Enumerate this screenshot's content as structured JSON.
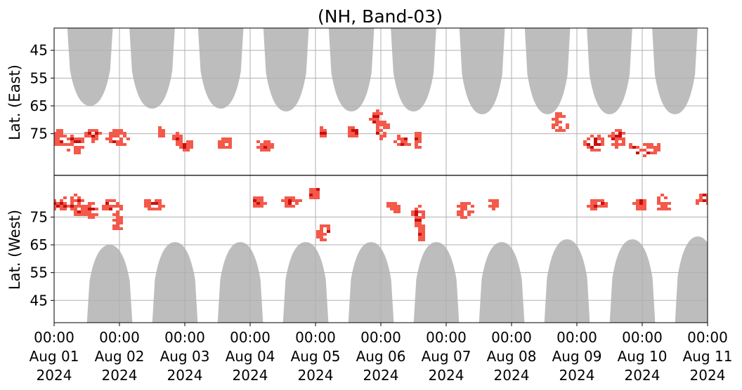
{
  "chart_data": {
    "type": "heatmap",
    "title": "(NH, Band-03)",
    "panels": [
      {
        "ylabel": "Lat. (East)",
        "yticks": [
          "45",
          "55",
          "65",
          "75"
        ],
        "ylim": [
          90,
          37
        ]
      },
      {
        "ylabel": "Lat. (West)",
        "yticks": [
          "75",
          "65",
          "55",
          "45"
        ],
        "ylim": [
          90,
          37
        ]
      }
    ],
    "x_ticks": [
      {
        "time": "00:00",
        "date": "Aug 01",
        "year": "2024"
      },
      {
        "time": "00:00",
        "date": "Aug 02",
        "year": "2024"
      },
      {
        "time": "00:00",
        "date": "Aug 03",
        "year": "2024"
      },
      {
        "time": "00:00",
        "date": "Aug 04",
        "year": "2024"
      },
      {
        "time": "00:00",
        "date": "Aug 05",
        "year": "2024"
      },
      {
        "time": "00:00",
        "date": "Aug 06",
        "year": "2024"
      },
      {
        "time": "00:00",
        "date": "Aug 07",
        "year": "2024"
      },
      {
        "time": "00:00",
        "date": "Aug 08",
        "year": "2024"
      },
      {
        "time": "00:00",
        "date": "Aug 09",
        "year": "2024"
      },
      {
        "time": "00:00",
        "date": "Aug 10",
        "year": "2024"
      },
      {
        "time": "00:00",
        "date": "Aug 11",
        "year": "2024"
      }
    ],
    "x_range": [
      "2024-08-01 00:00",
      "2024-08-11 00:00"
    ],
    "grid": true,
    "colors": {
      "no_data": "#bdbdbd",
      "low": "#f4594a",
      "high": "#c80f10"
    },
    "no_data_regions": [
      {
        "panel": "east",
        "center_day": 0.55,
        "edge_lat": 65,
        "half_width_days": 0.35
      },
      {
        "panel": "east",
        "center_day": 1.5,
        "edge_lat": 66,
        "half_width_days": 0.35
      },
      {
        "panel": "east",
        "center_day": 2.55,
        "edge_lat": 66,
        "half_width_days": 0.35
      },
      {
        "panel": "east",
        "center_day": 3.55,
        "edge_lat": 67,
        "half_width_days": 0.35
      },
      {
        "panel": "east",
        "center_day": 4.55,
        "edge_lat": 67,
        "half_width_days": 0.35
      },
      {
        "panel": "east",
        "center_day": 5.5,
        "edge_lat": 67,
        "half_width_days": 0.35
      },
      {
        "panel": "east",
        "center_day": 6.55,
        "edge_lat": 68,
        "half_width_days": 0.35
      },
      {
        "panel": "east",
        "center_day": 7.55,
        "edge_lat": 68,
        "half_width_days": 0.35
      },
      {
        "panel": "east",
        "center_day": 8.5,
        "edge_lat": 68,
        "half_width_days": 0.35
      },
      {
        "panel": "east",
        "center_day": 9.5,
        "edge_lat": 68,
        "half_width_days": 0.35
      },
      {
        "panel": "west",
        "center_day": 0.85,
        "edge_lat": 65,
        "half_width_days": 0.35
      },
      {
        "panel": "west",
        "center_day": 1.85,
        "edge_lat": 66,
        "half_width_days": 0.35
      },
      {
        "panel": "west",
        "center_day": 2.85,
        "edge_lat": 66,
        "half_width_days": 0.35
      },
      {
        "panel": "west",
        "center_day": 3.85,
        "edge_lat": 66,
        "half_width_days": 0.35
      },
      {
        "panel": "west",
        "center_day": 4.85,
        "edge_lat": 66,
        "half_width_days": 0.35
      },
      {
        "panel": "west",
        "center_day": 5.85,
        "edge_lat": 66,
        "half_width_days": 0.35
      },
      {
        "panel": "west",
        "center_day": 6.85,
        "edge_lat": 66,
        "half_width_days": 0.35
      },
      {
        "panel": "west",
        "center_day": 7.85,
        "edge_lat": 67,
        "half_width_days": 0.35
      },
      {
        "panel": "west",
        "center_day": 8.85,
        "edge_lat": 67,
        "half_width_days": 0.35
      },
      {
        "panel": "west",
        "center_day": 9.85,
        "edge_lat": 68,
        "half_width_days": 0.35
      }
    ],
    "activity_clusters": [
      {
        "day": 0.05,
        "lat": 76,
        "panel": "east",
        "spread_days": 0.12,
        "spread_lat": 3,
        "intensity": 0.5
      },
      {
        "day": 0.3,
        "lat": 78,
        "panel": "east",
        "spread_days": 0.15,
        "spread_lat": 4,
        "intensity": 0.8
      },
      {
        "day": 0.55,
        "lat": 75,
        "panel": "east",
        "spread_days": 0.12,
        "spread_lat": 2,
        "intensity": 0.5
      },
      {
        "day": 0.95,
        "lat": 76,
        "panel": "east",
        "spread_days": 0.15,
        "spread_lat": 3,
        "intensity": 0.5
      },
      {
        "day": 1.6,
        "lat": 74,
        "panel": "east",
        "spread_days": 0.05,
        "spread_lat": 2,
        "intensity": 0.6
      },
      {
        "day": 1.85,
        "lat": 76,
        "panel": "east",
        "spread_days": 0.08,
        "spread_lat": 2,
        "intensity": 0.4
      },
      {
        "day": 2.0,
        "lat": 79,
        "panel": "east",
        "spread_days": 0.12,
        "spread_lat": 2,
        "intensity": 0.5
      },
      {
        "day": 2.6,
        "lat": 78,
        "panel": "east",
        "spread_days": 0.1,
        "spread_lat": 2,
        "intensity": 0.6
      },
      {
        "day": 3.2,
        "lat": 79,
        "panel": "east",
        "spread_days": 0.12,
        "spread_lat": 2,
        "intensity": 0.7
      },
      {
        "day": 4.1,
        "lat": 74,
        "panel": "east",
        "spread_days": 0.05,
        "spread_lat": 2,
        "intensity": 0.4
      },
      {
        "day": 4.55,
        "lat": 74,
        "panel": "east",
        "spread_days": 0.08,
        "spread_lat": 2,
        "intensity": 0.4
      },
      {
        "day": 4.9,
        "lat": 69,
        "panel": "east",
        "spread_days": 0.08,
        "spread_lat": 3,
        "intensity": 0.5
      },
      {
        "day": 5.0,
        "lat": 73,
        "panel": "east",
        "spread_days": 0.1,
        "spread_lat": 3,
        "intensity": 0.6
      },
      {
        "day": 5.3,
        "lat": 77,
        "panel": "east",
        "spread_days": 0.12,
        "spread_lat": 2,
        "intensity": 0.5
      },
      {
        "day": 5.55,
        "lat": 77,
        "panel": "east",
        "spread_days": 0.05,
        "spread_lat": 3,
        "intensity": 0.6
      },
      {
        "day": 7.7,
        "lat": 71,
        "panel": "east",
        "spread_days": 0.12,
        "spread_lat": 4,
        "intensity": 0.5
      },
      {
        "day": 8.25,
        "lat": 78,
        "panel": "east",
        "spread_days": 0.15,
        "spread_lat": 3,
        "intensity": 0.8
      },
      {
        "day": 8.6,
        "lat": 76,
        "panel": "east",
        "spread_days": 0.15,
        "spread_lat": 3,
        "intensity": 0.7
      },
      {
        "day": 9.0,
        "lat": 80,
        "panel": "east",
        "spread_days": 0.3,
        "spread_lat": 2,
        "intensity": 0.5
      },
      {
        "day": 0.1,
        "lat": 80,
        "panel": "west",
        "spread_days": 0.2,
        "spread_lat": 2,
        "intensity": 0.6
      },
      {
        "day": 0.35,
        "lat": 80,
        "panel": "west",
        "spread_days": 0.15,
        "spread_lat": 4,
        "intensity": 0.9
      },
      {
        "day": 0.55,
        "lat": 78,
        "panel": "west",
        "spread_days": 0.12,
        "spread_lat": 3,
        "intensity": 0.7
      },
      {
        "day": 0.85,
        "lat": 79,
        "panel": "west",
        "spread_days": 0.15,
        "spread_lat": 3,
        "intensity": 0.8
      },
      {
        "day": 0.95,
        "lat": 74,
        "panel": "west",
        "spread_days": 0.08,
        "spread_lat": 3,
        "intensity": 0.6
      },
      {
        "day": 1.5,
        "lat": 80,
        "panel": "west",
        "spread_days": 0.15,
        "spread_lat": 2,
        "intensity": 0.5
      },
      {
        "day": 3.1,
        "lat": 81,
        "panel": "west",
        "spread_days": 0.1,
        "spread_lat": 2,
        "intensity": 0.4
      },
      {
        "day": 3.6,
        "lat": 81,
        "panel": "west",
        "spread_days": 0.12,
        "spread_lat": 2,
        "intensity": 0.5
      },
      {
        "day": 3.95,
        "lat": 84,
        "panel": "west",
        "spread_days": 0.08,
        "spread_lat": 2,
        "intensity": 0.5
      },
      {
        "day": 4.1,
        "lat": 70,
        "panel": "west",
        "spread_days": 0.1,
        "spread_lat": 3,
        "intensity": 0.5
      },
      {
        "day": 5.15,
        "lat": 79,
        "panel": "west",
        "spread_days": 0.1,
        "spread_lat": 2,
        "intensity": 0.4
      },
      {
        "day": 5.55,
        "lat": 76,
        "panel": "west",
        "spread_days": 0.08,
        "spread_lat": 4,
        "intensity": 0.8
      },
      {
        "day": 5.6,
        "lat": 70,
        "panel": "west",
        "spread_days": 0.04,
        "spread_lat": 3,
        "intensity": 0.6
      },
      {
        "day": 6.25,
        "lat": 78,
        "panel": "west",
        "spread_days": 0.12,
        "spread_lat": 3,
        "intensity": 0.5
      },
      {
        "day": 6.7,
        "lat": 80,
        "panel": "west",
        "spread_days": 0.05,
        "spread_lat": 2,
        "intensity": 0.4
      },
      {
        "day": 8.3,
        "lat": 80,
        "panel": "west",
        "spread_days": 0.15,
        "spread_lat": 2,
        "intensity": 0.5
      },
      {
        "day": 8.95,
        "lat": 80,
        "panel": "west",
        "spread_days": 0.1,
        "spread_lat": 2,
        "intensity": 0.6
      },
      {
        "day": 9.3,
        "lat": 81,
        "panel": "west",
        "spread_days": 0.1,
        "spread_lat": 3,
        "intensity": 0.6
      },
      {
        "day": 10.0,
        "lat": 82,
        "panel": "west",
        "spread_days": 0.25,
        "spread_lat": 2,
        "intensity": 0.5
      }
    ]
  }
}
